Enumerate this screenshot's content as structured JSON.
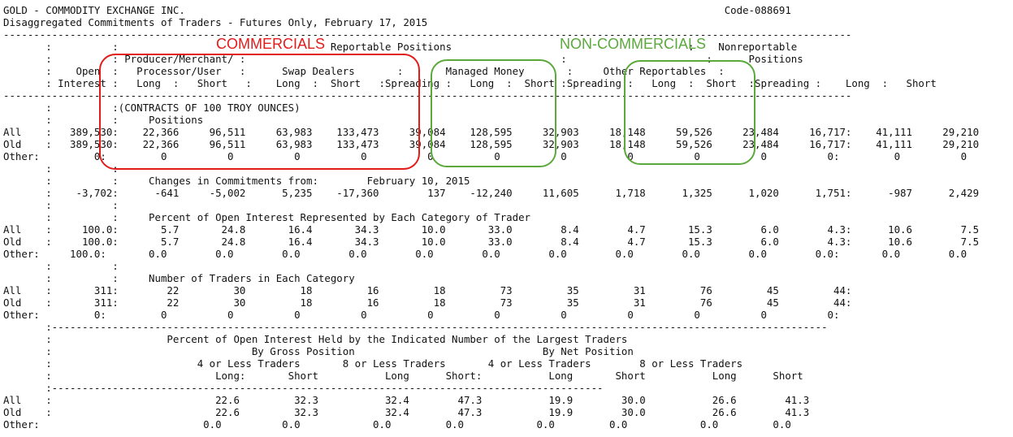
{
  "report": {
    "lines": [
      "GOLD - COMMODITY EXCHANGE INC.                                                                                         Code-088691",
      "Disaggregated Commitments of Traders - Futures Only, February 17, 2015",
      "--------------------------------------------------------------------------------------------------------------------------------------------",
      "       :          :                                   Reportable Positions                                       :    Nonreportable",
      "       :          : Producer/Merchant/ :                                                    :                       :      Positions",
      "       :    Open  :   Processor/User   :      Swap Dealers       :       Managed Money       :     Other Reportables  :",
      "       : Interest :   Long  :   Short   :    Long  :  Short   :Spreading :   Long  :  Short :Spreading :   Long  :  Short  :Spreading :    Long  :   Short",
      "--------------------------------------------------------------------------------------------------------------------------------------------",
      "       :          :(CONTRACTS OF 100 TROY OUNCES)",
      "       :          :     Positions",
      "All    :   389,530:    22,366     96,511     63,983    133,473     39,084    128,595     32,903     18,148     59,526     23,484     16,717:    41,111     29,210",
      "Old    :   389,530:    22,366     96,511     63,983    133,473     39,084    128,595     32,903     18,148     59,526     23,484     16,717:    41,111     29,210",
      "Other:         0:         0          0          0          0          0          0          0          0          0          0          0:         0          0",
      "       :          :",
      "       :          :     Changes in Commitments from:        February 10, 2015",
      "       :    -3,702:      -641     -5,002      5,235    -17,360        137    -12,240     11,605      1,718      1,325      1,020      1,751:      -987      2,429",
      "       :          :",
      "       :          :     Percent of Open Interest Represented by Each Category of Trader",
      "All    :     100.0:       5.7       24.8       16.4       34.3       10.0       33.0        8.4        4.7       15.3        6.0        4.3:      10.6        7.5",
      "Old    :     100.0:       5.7       24.8       16.4       34.3       10.0       33.0        8.4        4.7       15.3        6.0        4.3:      10.6        7.5",
      "Other:     100.0:       0.0        0.0        0.0        0.0        0.0        0.0        0.0        0.0        0.0        0.0        0.0:       0.0        0.0",
      "       :          :",
      "       :          :     Number of Traders in Each Category",
      "All    :       311:        22         30         18         16         18         73         35         31         76         45         44:",
      "Old    :       311:        22         30         18         16         18         73         35         31         76         45         44:",
      "Other:         0:         0          0          0          0          0          0          0          0          0          0          0:",
      "       :--------------------------------------------------------------------------------------------------------------------------------",
      "       :                   Percent of Open Interest Held by the Indicated Number of the Largest Traders",
      "       :                                 By Gross Position                               By Net Position",
      "       :                        4 or Less Traders       8 or Less Traders       4 or Less Traders        8 or Less Traders",
      "       :                           Long:       Short           Long      Short:           Long       Short           Long      Short",
      "       :-------------------------------------------------------------------------------------------",
      "All    :                           22.6         32.3           32.4        47.3           19.9        30.0           26.6        41.3",
      "Old    :                           22.6         32.3           32.4        47.3           19.9        30.0           26.6        41.3",
      "Other:                           0.0          0.0            0.0         0.0            0.0         0.0            0.0         0.0"
    ]
  },
  "annotations": {
    "commercials": "COMMERCIALS",
    "non_commercials": "NON-COMMERCIALS"
  },
  "colors": {
    "commercials": "#e21b1b",
    "non_commercials": "#5aa93a"
  }
}
